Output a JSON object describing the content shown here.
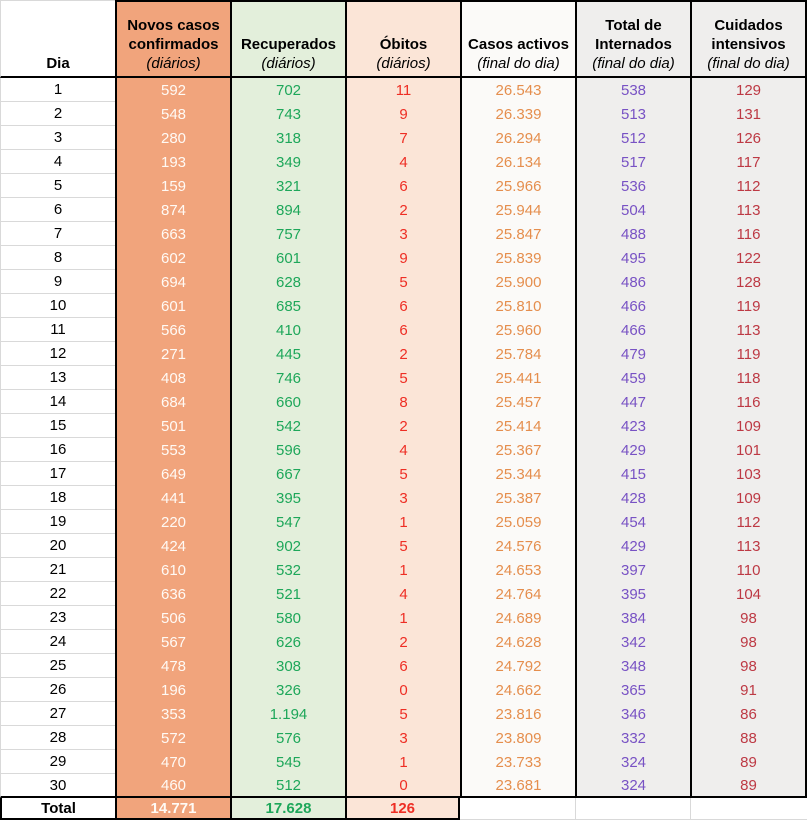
{
  "colors": {
    "new_cases_bg": "#f1a47c",
    "new_cases_text": "#ffffff",
    "recovered_bg": "#e3efdb",
    "recovered_text": "#1ea75a",
    "deaths_bg": "#fbe5d7",
    "deaths_text": "#ee2e24",
    "active_cases_bg": "#fbfaf8",
    "active_cases_text": "#e58e4d",
    "hospitalized_bg": "#efeeed",
    "hospitalized_text": "#7852c4",
    "icu_bg": "#efeeed",
    "icu_text": "#bd3944",
    "border": "#000000",
    "gridline": "#d9d9d9"
  },
  "chart_data": {
    "type": "table",
    "columns": [
      {
        "title": "Dia",
        "subtitle": ""
      },
      {
        "title": "Novos casos confirmados",
        "subtitle": "(diários)"
      },
      {
        "title": "Recuperados",
        "subtitle": "(diários)"
      },
      {
        "title": "Óbitos",
        "subtitle": "(diários)"
      },
      {
        "title": "Casos activos",
        "subtitle": "(final do dia)"
      },
      {
        "title": "Total de Internados",
        "subtitle": "(final do dia)"
      },
      {
        "title": "Cuidados intensivos",
        "subtitle": "(final do dia)"
      }
    ],
    "rows": [
      [
        "1",
        "592",
        "702",
        "11",
        "26.543",
        "538",
        "129"
      ],
      [
        "2",
        "548",
        "743",
        "9",
        "26.339",
        "513",
        "131"
      ],
      [
        "3",
        "280",
        "318",
        "7",
        "26.294",
        "512",
        "126"
      ],
      [
        "4",
        "193",
        "349",
        "4",
        "26.134",
        "517",
        "117"
      ],
      [
        "5",
        "159",
        "321",
        "6",
        "25.966",
        "536",
        "112"
      ],
      [
        "6",
        "874",
        "894",
        "2",
        "25.944",
        "504",
        "113"
      ],
      [
        "7",
        "663",
        "757",
        "3",
        "25.847",
        "488",
        "116"
      ],
      [
        "8",
        "602",
        "601",
        "9",
        "25.839",
        "495",
        "122"
      ],
      [
        "9",
        "694",
        "628",
        "5",
        "25.900",
        "486",
        "128"
      ],
      [
        "10",
        "601",
        "685",
        "6",
        "25.810",
        "466",
        "119"
      ],
      [
        "11",
        "566",
        "410",
        "6",
        "25.960",
        "466",
        "113"
      ],
      [
        "12",
        "271",
        "445",
        "2",
        "25.784",
        "479",
        "119"
      ],
      [
        "13",
        "408",
        "746",
        "5",
        "25.441",
        "459",
        "118"
      ],
      [
        "14",
        "684",
        "660",
        "8",
        "25.457",
        "447",
        "116"
      ],
      [
        "15",
        "501",
        "542",
        "2",
        "25.414",
        "423",
        "109"
      ],
      [
        "16",
        "553",
        "596",
        "4",
        "25.367",
        "429",
        "101"
      ],
      [
        "17",
        "649",
        "667",
        "5",
        "25.344",
        "415",
        "103"
      ],
      [
        "18",
        "441",
        "395",
        "3",
        "25.387",
        "428",
        "109"
      ],
      [
        "19",
        "220",
        "547",
        "1",
        "25.059",
        "454",
        "112"
      ],
      [
        "20",
        "424",
        "902",
        "5",
        "24.576",
        "429",
        "113"
      ],
      [
        "21",
        "610",
        "532",
        "1",
        "24.653",
        "397",
        "110"
      ],
      [
        "22",
        "636",
        "521",
        "4",
        "24.764",
        "395",
        "104"
      ],
      [
        "23",
        "506",
        "580",
        "1",
        "24.689",
        "384",
        "98"
      ],
      [
        "24",
        "567",
        "626",
        "2",
        "24.628",
        "342",
        "98"
      ],
      [
        "25",
        "478",
        "308",
        "6",
        "24.792",
        "348",
        "98"
      ],
      [
        "26",
        "196",
        "326",
        "0",
        "24.662",
        "365",
        "91"
      ],
      [
        "27",
        "353",
        "1.194",
        "5",
        "23.816",
        "346",
        "86"
      ],
      [
        "28",
        "572",
        "576",
        "3",
        "23.809",
        "332",
        "88"
      ],
      [
        "29",
        "470",
        "545",
        "1",
        "23.733",
        "324",
        "89"
      ],
      [
        "30",
        "460",
        "512",
        "0",
        "23.681",
        "324",
        "89"
      ]
    ],
    "total_row": [
      "Total",
      "14.771",
      "17.628",
      "126",
      "",
      "",
      ""
    ]
  }
}
